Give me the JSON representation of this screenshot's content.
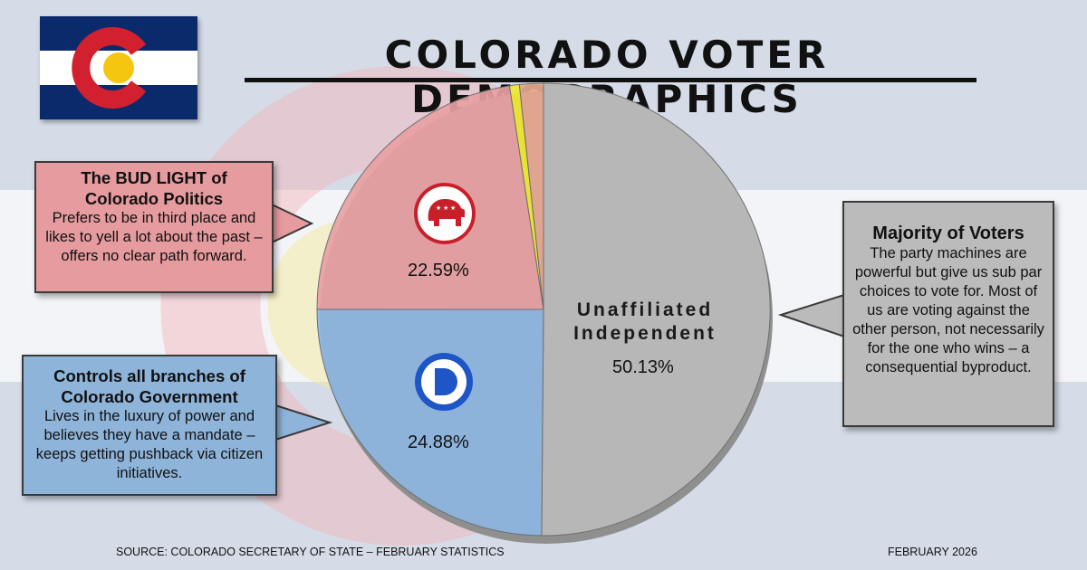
{
  "header": {
    "title": "COLORADO VOTER DEMOGRAPHICS"
  },
  "colors": {
    "rep": "#e8a0a3",
    "dem": "#8db6e2",
    "ind": "#b7b7b7",
    "yellow": "#f1e82e",
    "salmon": "#e6a78e",
    "flag_blue": "#0b2a6b",
    "flag_red": "#d2202e",
    "flag_gold": "#f4c60f"
  },
  "icons": {
    "rep": "republican-elephant-icon",
    "dem": "democratic-d-icon",
    "flag": "colorado-flag-icon"
  },
  "chart_data": {
    "type": "pie",
    "title": "COLORADO VOTER DEMOGRAPHICS",
    "slices": [
      {
        "label": "Unaffiliated Independent",
        "value": 50.13,
        "value_label": "50.13%",
        "color": "#b7b7b7"
      },
      {
        "label": "Democratic",
        "value": 24.88,
        "value_label": "24.88%",
        "color": "#8db6e2"
      },
      {
        "label": "Republican",
        "value": 22.59,
        "value_label": "22.59%",
        "color": "#e8a0a3"
      },
      {
        "label": "Other (yellow)",
        "value": 0.7,
        "value_label": "",
        "color": "#f1e82e"
      },
      {
        "label": "Other (salmon)",
        "value": 1.7,
        "value_label": "",
        "color": "#e6a78e"
      }
    ],
    "start_position": "12 o'clock, clockwise",
    "legend": "none"
  },
  "labels": {
    "ind_line1": "Unaffiliated",
    "ind_line2": "Independent"
  },
  "callouts": {
    "rep": {
      "heading_1": "The BUD LIGHT of",
      "heading_2": "Colorado Politics",
      "body": "Prefers to be in third place and likes to yell a lot about the past – offers no clear path forward."
    },
    "dem": {
      "heading_1": "Controls all branches of",
      "heading_2": "Colorado Government",
      "body": "Lives in the luxury of power and believes they have a mandate – keeps getting pushback via citizen initiatives."
    },
    "ind": {
      "heading": "Majority of Voters",
      "body": "The party machines are powerful but give us sub par choices to vote for. Most of us are voting against the other person, not necessarily for the one who wins – a consequential byproduct."
    }
  },
  "footer": {
    "source": "SOURCE: COLORADO SECRETARY OF STATE – FEBRUARY STATISTICS",
    "date": "FEBRUARY 2026"
  }
}
